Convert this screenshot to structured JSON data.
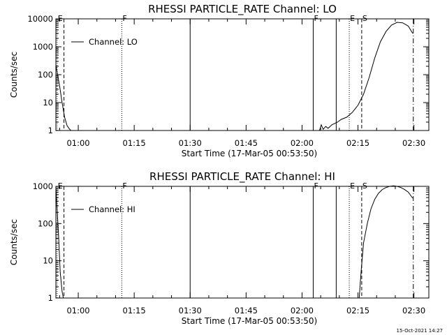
{
  "chart_data": [
    {
      "type": "line",
      "title": "RHESSI PARTICLE_RATE Channel: LO",
      "xlabel": "Start Time (17-Mar-05 00:53:50)",
      "ylabel": "Counts/sec",
      "yscale": "log",
      "xlim": [
        "00:54",
        "02:34"
      ],
      "ylim": [
        1,
        10000
      ],
      "x_ticks": [
        "01:00",
        "01:15",
        "01:30",
        "01:45",
        "02:00",
        "02:15",
        "02:30"
      ],
      "y_ticks": [
        "1",
        "10",
        "100",
        "1000",
        "10000"
      ],
      "legend": {
        "location": "top-left",
        "entries": [
          "Channel: LO"
        ]
      },
      "grid": false,
      "series": [
        {
          "name": "Channel: LO",
          "segments": [
            {
              "x": [
                "00:54:00",
                "00:55:00",
                "00:55:40",
                "00:56:20",
                "00:57:00",
                "00:57:30",
                "00:58:00"
              ],
              "y": [
                220,
                40,
                10,
                3,
                1.5,
                1.2,
                1.0
              ]
            },
            {
              "x": [
                "02:04:40",
                "02:05:10",
                "02:05:40",
                "02:06:20",
                "02:07:00",
                "02:08:00",
                "02:09:30",
                "02:10:30",
                "02:12:00",
                "02:13:30",
                "02:15:00",
                "02:16:30",
                "02:18:00",
                "02:19:30",
                "02:21:00",
                "02:22:30",
                "02:24:00",
                "02:25:30",
                "02:27:00",
                "02:28:30",
                "02:29:40"
              ],
              "y": [
                1.0,
                1.6,
                1.1,
                1.4,
                1.2,
                1.6,
                2.0,
                2.5,
                3.0,
                4.5,
                8,
                20,
                80,
                400,
                1500,
                3500,
                6000,
                7500,
                7200,
                5500,
                3000
              ]
            }
          ]
        }
      ],
      "markers": [
        {
          "label": "E",
          "time": "00:54:20",
          "style": "dotted"
        },
        {
          "label": "",
          "time": "00:56:10",
          "style": "dashed"
        },
        {
          "label": "F",
          "time": "01:11:40",
          "style": "dotted"
        },
        {
          "label": "",
          "time": "01:30:00",
          "style": "solid"
        },
        {
          "label": "F",
          "time": "02:03:00",
          "style": "solid"
        },
        {
          "label": "",
          "time": "02:09:10",
          "style": "solid"
        },
        {
          "label": "E",
          "time": "02:12:40",
          "style": "dotted"
        },
        {
          "label": "S",
          "time": "02:16:00",
          "style": "dashed"
        },
        {
          "label": "",
          "time": "02:29:50",
          "style": "dashdot"
        }
      ]
    },
    {
      "type": "line",
      "title": "RHESSI PARTICLE_RATE Channel: HI",
      "xlabel": "Start Time (17-Mar-05 00:53:50)",
      "ylabel": "Counts/sec",
      "yscale": "log",
      "xlim": [
        "00:54",
        "02:34"
      ],
      "ylim": [
        1,
        1000
      ],
      "x_ticks": [
        "01:00",
        "01:15",
        "01:30",
        "01:45",
        "02:00",
        "02:15",
        "02:30"
      ],
      "y_ticks": [
        "1",
        "10",
        "100",
        "1000"
      ],
      "legend": {
        "location": "top-left",
        "entries": [
          "Channel: HI"
        ]
      },
      "grid": false,
      "series": [
        {
          "name": "Channel: HI",
          "segments": [
            {
              "x": [
                "00:54:00",
                "00:54:40",
                "00:55:10",
                "00:55:40",
                "00:56:00"
              ],
              "y": [
                900,
                60,
                5,
                1.5,
                1.0
              ]
            },
            {
              "x": [
                "02:15:20",
                "02:15:50",
                "02:16:30",
                "02:17:30",
                "02:18:30",
                "02:19:30",
                "02:20:30",
                "02:21:30",
                "02:22:30",
                "02:23:30",
                "02:24:30",
                "02:25:30",
                "02:26:30",
                "02:27:30",
                "02:28:30",
                "02:29:40"
              ],
              "y": [
                1.0,
                5,
                30,
                100,
                250,
                450,
                650,
                820,
                930,
                1000,
                1030,
                1000,
                930,
                820,
                700,
                480
              ]
            }
          ]
        }
      ],
      "markers": [
        {
          "label": "E",
          "time": "00:54:20",
          "style": "dotted"
        },
        {
          "label": "",
          "time": "00:56:10",
          "style": "dashed"
        },
        {
          "label": "F",
          "time": "01:11:40",
          "style": "dotted"
        },
        {
          "label": "",
          "time": "01:30:00",
          "style": "solid"
        },
        {
          "label": "F",
          "time": "02:03:00",
          "style": "solid"
        },
        {
          "label": "",
          "time": "02:09:10",
          "style": "solid"
        },
        {
          "label": "E",
          "time": "02:12:40",
          "style": "dotted"
        },
        {
          "label": "S",
          "time": "02:16:00",
          "style": "dashed"
        },
        {
          "label": "",
          "time": "02:29:50",
          "style": "dashdot"
        }
      ]
    }
  ],
  "footer": {
    "timestamp": "15-Oct-2021 14:27"
  }
}
